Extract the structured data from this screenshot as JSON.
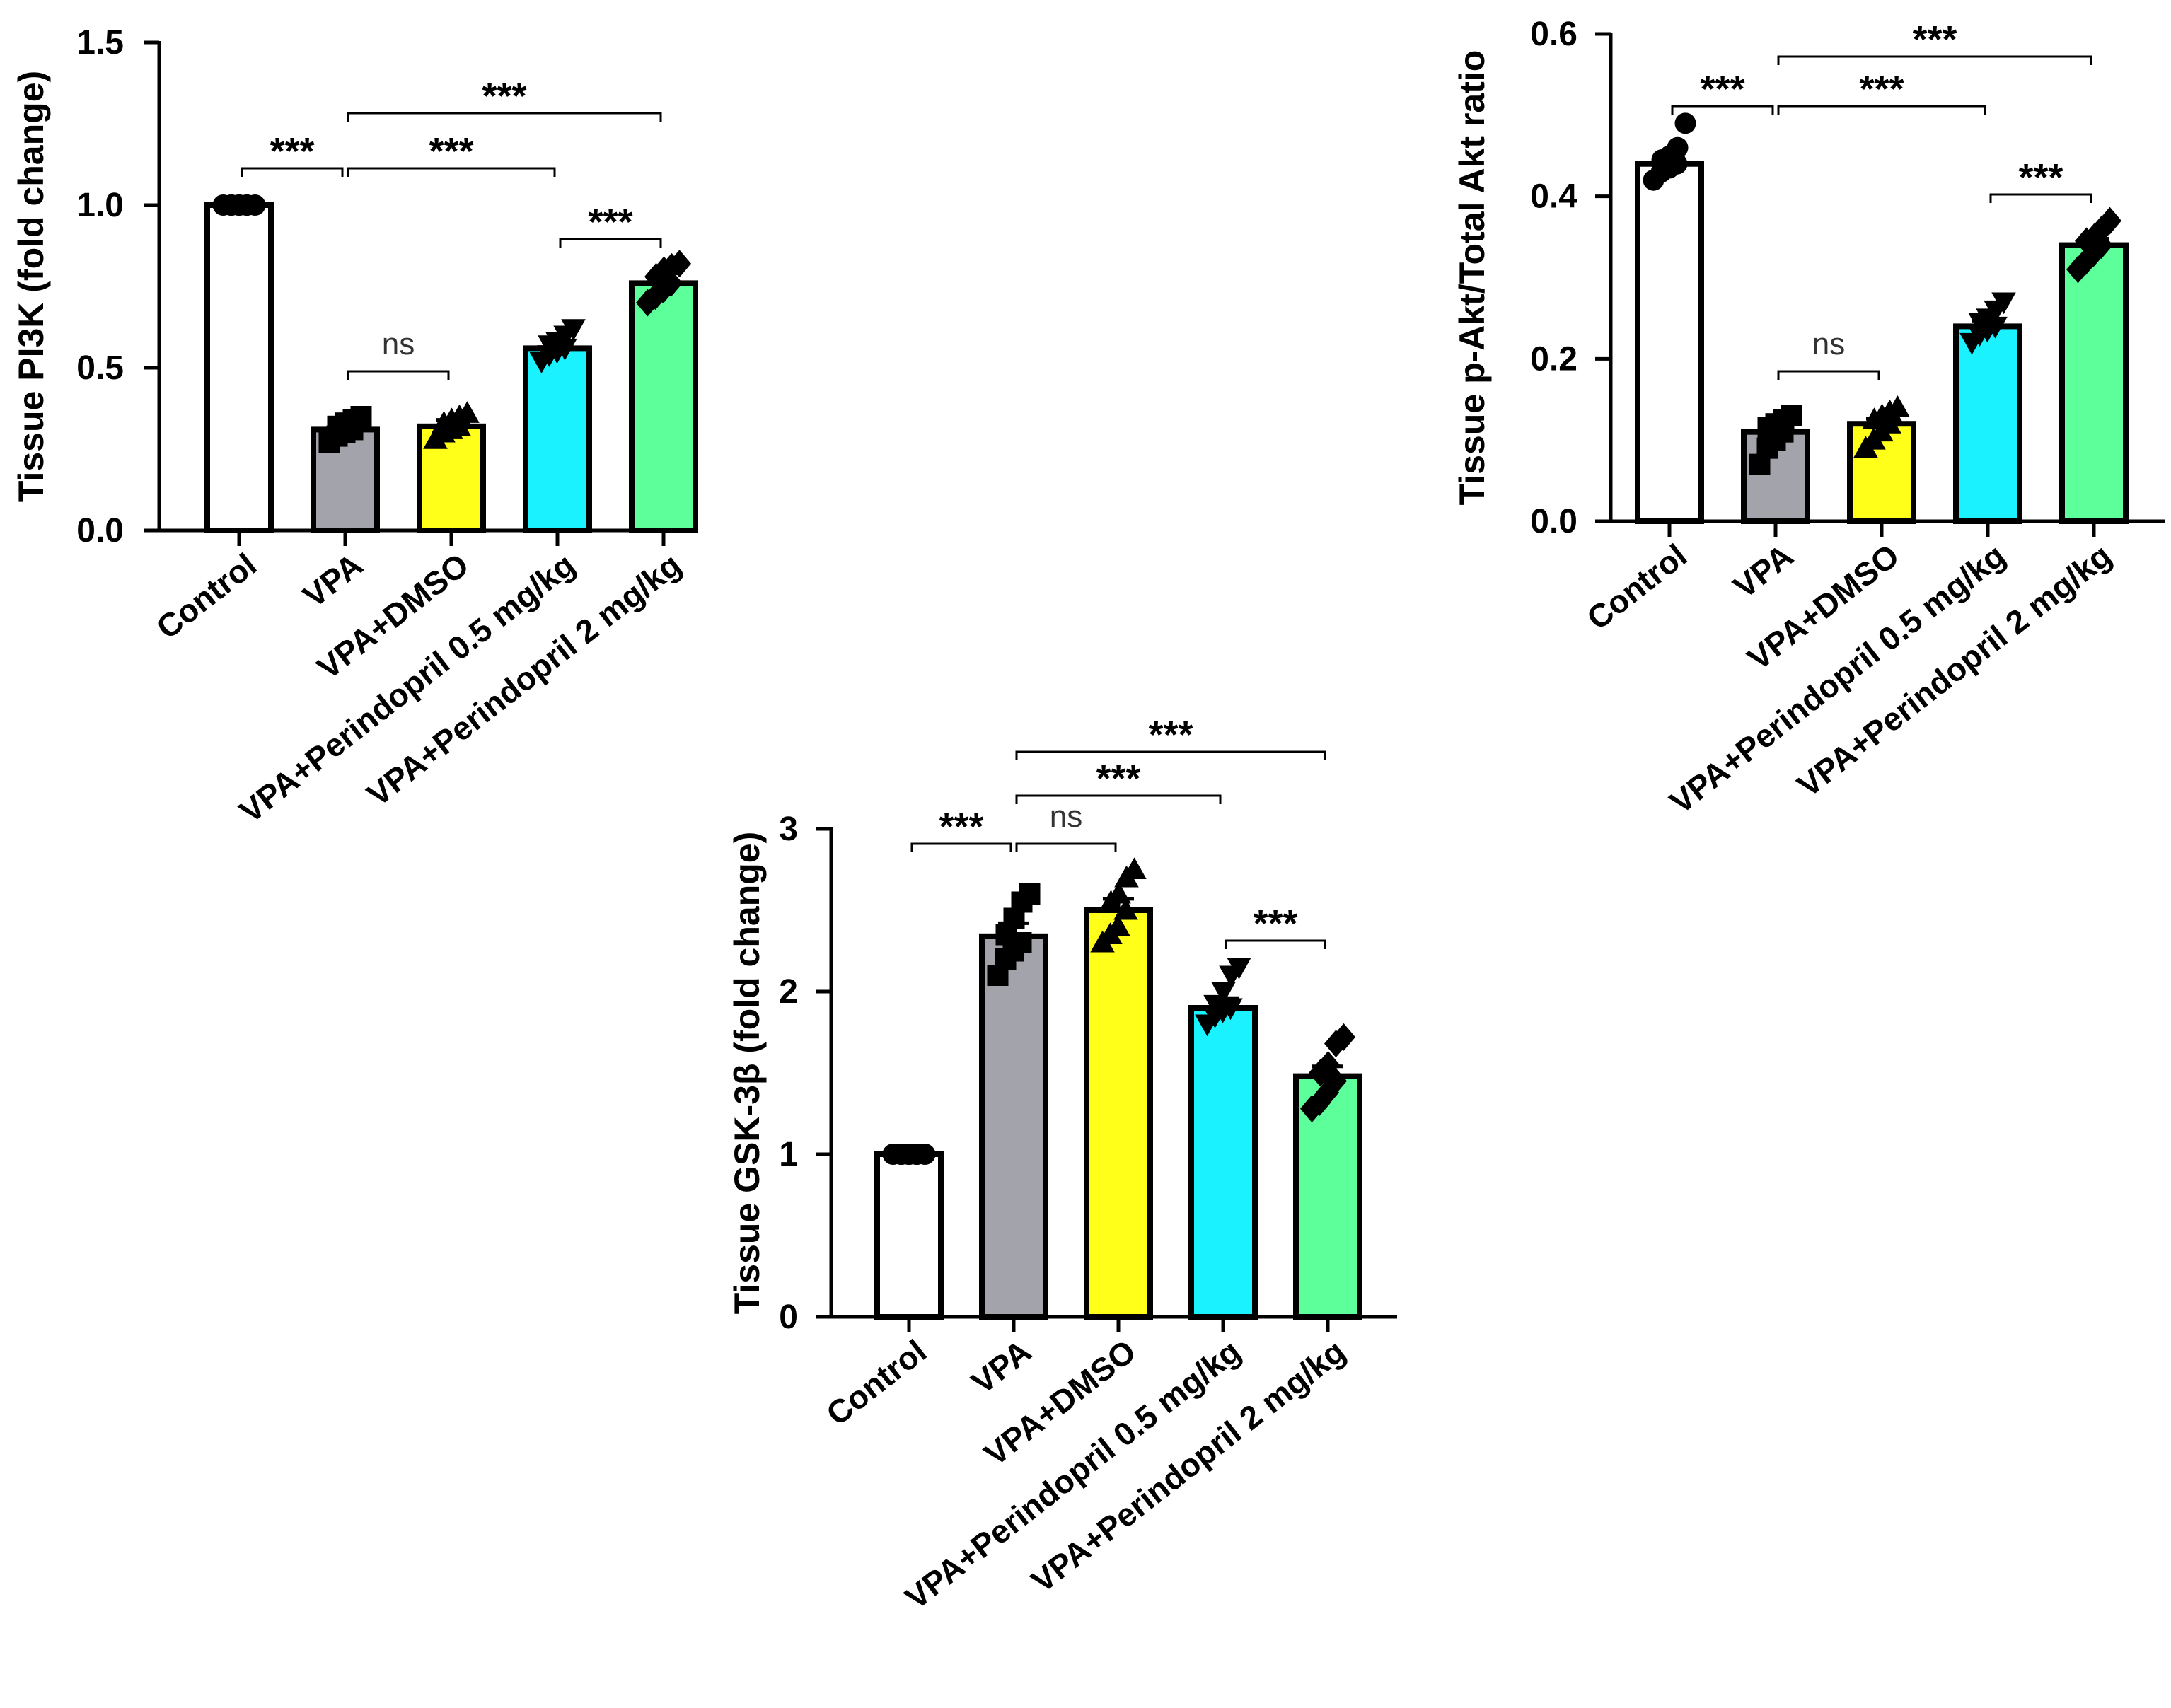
{
  "chart_data": [
    {
      "type": "bar",
      "title": "",
      "xlabel": "",
      "ylabel": "Tissue PI3K (fold change)",
      "ylim": [
        0,
        1.5
      ],
      "yticks": [
        0.0,
        0.5,
        1.0,
        1.5
      ],
      "ytick_labels": [
        "0.0",
        "0.5",
        "1.0",
        "1.5"
      ],
      "categories": [
        "Control",
        "VPA",
        "VPA+DMSO",
        "VPA+Perindopril 0.5 mg/kg",
        "VPA+Perindopril 2 mg/kg"
      ],
      "values": [
        1.0,
        0.31,
        0.32,
        0.56,
        0.76
      ],
      "errors": [
        0.0,
        0.02,
        0.02,
        0.02,
        0.03
      ],
      "colors": [
        "#ffffff",
        "#a3a3ab",
        "#ffff1a",
        "#1af2ff",
        "#5cff9a"
      ],
      "markers": [
        "circle",
        "square",
        "triangle",
        "triangle-down",
        "diamond"
      ],
      "points": [
        [
          1.0,
          1.0,
          1.0,
          1.0,
          1.0,
          1.0,
          1.0,
          1.0
        ],
        [
          0.27,
          0.29,
          0.3,
          0.31,
          0.32,
          0.33,
          0.34,
          0.35
        ],
        [
          0.28,
          0.3,
          0.31,
          0.32,
          0.33,
          0.34,
          0.35,
          0.36
        ],
        [
          0.52,
          0.54,
          0.55,
          0.56,
          0.57,
          0.58,
          0.6,
          0.62
        ],
        [
          0.7,
          0.72,
          0.74,
          0.76,
          0.78,
          0.8,
          0.81,
          0.82
        ]
      ],
      "significance": [
        {
          "from": 0,
          "to": 1,
          "label": "***"
        },
        {
          "from": 1,
          "to": 2,
          "label": "ns"
        },
        {
          "from": 1,
          "to": 3,
          "label": "***"
        },
        {
          "from": 1,
          "to": 4,
          "label": "***"
        },
        {
          "from": 3,
          "to": 4,
          "label": "***"
        }
      ]
    },
    {
      "type": "bar",
      "title": "",
      "xlabel": "",
      "ylabel": "Tissue p-Akt/Total Akt ratio",
      "ylim": [
        0,
        0.6
      ],
      "yticks": [
        0.0,
        0.2,
        0.4,
        0.6
      ],
      "ytick_labels": [
        "0.0",
        "0.2",
        "0.4",
        "0.6"
      ],
      "categories": [
        "Control",
        "VPA",
        "VPA+DMSO",
        "VPA+Perindopril 0.5 mg/kg",
        "VPA+Perindopril 2 mg/kg"
      ],
      "values": [
        0.44,
        0.11,
        0.12,
        0.24,
        0.34
      ],
      "errors": [
        0.007,
        0.006,
        0.006,
        0.007,
        0.008
      ],
      "colors": [
        "#ffffff",
        "#a3a3ab",
        "#ffff1a",
        "#1af2ff",
        "#5cff9a"
      ],
      "markers": [
        "circle",
        "square",
        "triangle",
        "triangle-down",
        "diamond"
      ],
      "points": [
        [
          0.42,
          0.43,
          0.435,
          0.44,
          0.445,
          0.45,
          0.46,
          0.49
        ],
        [
          0.07,
          0.09,
          0.1,
          0.11,
          0.115,
          0.12,
          0.125,
          0.13
        ],
        [
          0.09,
          0.1,
          0.11,
          0.12,
          0.125,
          0.13,
          0.135,
          0.14
        ],
        [
          0.22,
          0.23,
          0.235,
          0.24,
          0.245,
          0.25,
          0.26,
          0.27
        ],
        [
          0.31,
          0.32,
          0.33,
          0.34,
          0.345,
          0.35,
          0.36,
          0.37
        ]
      ],
      "significance": [
        {
          "from": 0,
          "to": 1,
          "label": "***"
        },
        {
          "from": 1,
          "to": 2,
          "label": "ns"
        },
        {
          "from": 1,
          "to": 3,
          "label": "***"
        },
        {
          "from": 1,
          "to": 4,
          "label": "***"
        },
        {
          "from": 3,
          "to": 4,
          "label": "***"
        }
      ]
    },
    {
      "type": "bar",
      "title": "",
      "xlabel": "",
      "ylabel": "Tissue GSK-3β (fold change)",
      "ylim": [
        0,
        3
      ],
      "yticks": [
        0,
        1,
        2,
        3
      ],
      "ytick_labels": [
        "0",
        "1",
        "2",
        "3"
      ],
      "categories": [
        "Control",
        "VPA",
        "VPA+DMSO",
        "VPA+Perindopril 0.5 mg/kg",
        "VPA+Perindopril 2 mg/kg"
      ],
      "values": [
        1.0,
        2.34,
        2.5,
        1.9,
        1.48
      ],
      "errors": [
        0.0,
        0.08,
        0.07,
        0.06,
        0.06
      ],
      "colors": [
        "#ffffff",
        "#a3a3ab",
        "#ffff1a",
        "#1af2ff",
        "#5cff9a"
      ],
      "markers": [
        "circle",
        "square",
        "triangle",
        "triangle-down",
        "diamond"
      ],
      "points": [
        [
          1.0,
          1.0,
          1.0,
          1.0,
          1.0,
          1.0,
          1.0,
          1.0
        ],
        [
          2.1,
          2.2,
          2.25,
          2.3,
          2.35,
          2.45,
          2.55,
          2.6
        ],
        [
          2.3,
          2.35,
          2.4,
          2.5,
          2.55,
          2.6,
          2.7,
          2.75
        ],
        [
          1.8,
          1.85,
          1.88,
          1.9,
          1.92,
          2.0,
          2.1,
          2.15
        ],
        [
          1.28,
          1.32,
          1.38,
          1.45,
          1.5,
          1.55,
          1.68,
          1.72
        ]
      ],
      "significance": [
        {
          "from": 0,
          "to": 1,
          "label": "***"
        },
        {
          "from": 1,
          "to": 2,
          "label": "ns"
        },
        {
          "from": 1,
          "to": 3,
          "label": "***"
        },
        {
          "from": 1,
          "to": 4,
          "label": "***"
        },
        {
          "from": 3,
          "to": 4,
          "label": "***"
        }
      ]
    }
  ]
}
